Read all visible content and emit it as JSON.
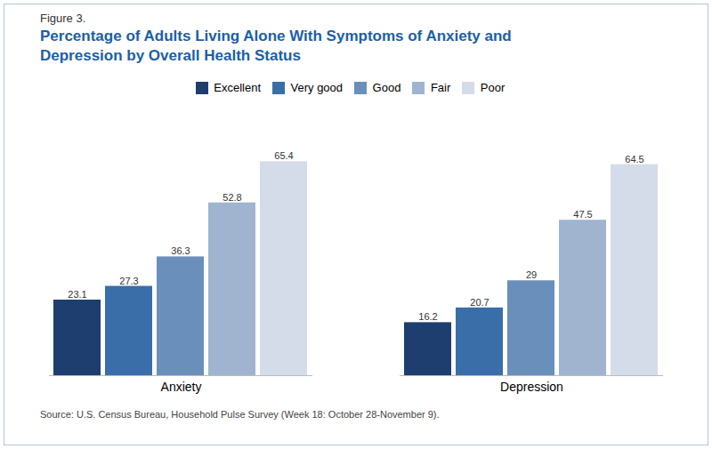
{
  "chart_data": {
    "type": "bar",
    "title": "Percentage of Adults Living Alone With Symptoms of Anxiety and\nDepression by Overall Health Status",
    "annotations": [
      "Figure 3.",
      "Source: U.S. Census Bureau, Household Pulse Survey (Week 18: October 28-November 9)."
    ],
    "categories": [
      "Anxiety",
      "Depression"
    ],
    "series": [
      {
        "name": "Excellent",
        "color": "#1D3E6F",
        "values": [
          23.1,
          16.2
        ]
      },
      {
        "name": "Very good",
        "color": "#3A6EA8",
        "values": [
          27.3,
          20.7
        ]
      },
      {
        "name": "Good",
        "color": "#6B8FBB",
        "values": [
          36.3,
          29.0
        ]
      },
      {
        "name": "Fair",
        "color": "#A0B4CF",
        "values": [
          52.8,
          47.5
        ]
      },
      {
        "name": "Poor",
        "color": "#D5DCE9",
        "values": [
          65.4,
          64.5
        ]
      }
    ],
    "ylim": [
      0,
      75
    ],
    "grid": false,
    "legend": "top",
    "data_labels": true,
    "tick_labels": "x"
  }
}
